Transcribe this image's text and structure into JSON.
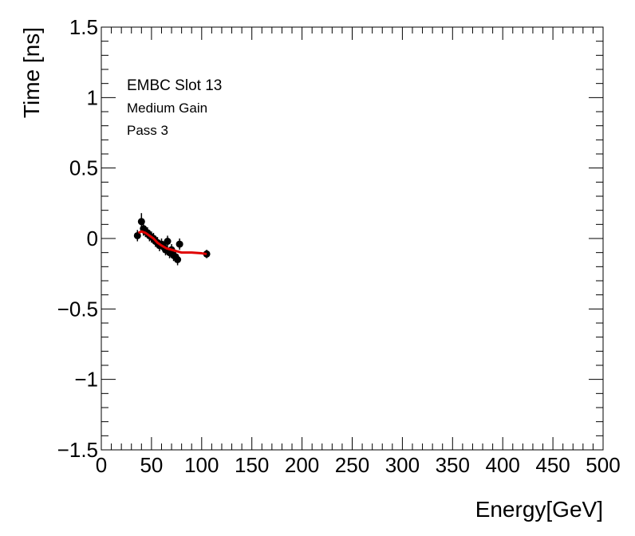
{
  "chart_data": {
    "type": "scatter",
    "xlabel": "Energy[GeV]",
    "ylabel": "Time [ns]",
    "xlim": [
      0,
      500
    ],
    "ylim": [
      -1.5,
      1.5
    ],
    "x_ticks": [
      0,
      50,
      100,
      150,
      200,
      250,
      300,
      350,
      400,
      450,
      500
    ],
    "x_tick_labels": [
      "0",
      "50",
      "100",
      "150",
      "200",
      "250",
      "300",
      "350",
      "400",
      "450",
      "500"
    ],
    "y_ticks": [
      -1.5,
      -1,
      -0.5,
      0,
      0.5,
      1,
      1.5
    ],
    "y_tick_labels": [
      "−1.5",
      "−1",
      "−0.5",
      "0",
      "0.5",
      "1",
      "1.5"
    ],
    "grid": false,
    "annotations": [
      "EMBC Slot 13",
      "Medium Gain",
      "Pass 3"
    ],
    "colors": {
      "points": "#000000",
      "fit": "#e00000"
    },
    "series": [
      {
        "values": [
          {
            "x": 36,
            "y": 0.02,
            "err": 0.04
          },
          {
            "x": 40,
            "y": 0.12,
            "err": 0.06
          },
          {
            "x": 42,
            "y": 0.07,
            "err": 0.05
          },
          {
            "x": 44,
            "y": 0.05,
            "err": 0.04
          },
          {
            "x": 46,
            "y": 0.04,
            "err": 0.04
          },
          {
            "x": 48,
            "y": 0.02,
            "err": 0.04
          },
          {
            "x": 50,
            "y": 0.01,
            "err": 0.04
          },
          {
            "x": 52,
            "y": 0.0,
            "err": 0.04
          },
          {
            "x": 54,
            "y": -0.02,
            "err": 0.04
          },
          {
            "x": 56,
            "y": -0.03,
            "err": 0.04
          },
          {
            "x": 58,
            "y": -0.05,
            "err": 0.04
          },
          {
            "x": 60,
            "y": -0.04,
            "err": 0.04
          },
          {
            "x": 62,
            "y": -0.06,
            "err": 0.04
          },
          {
            "x": 64,
            "y": -0.08,
            "err": 0.04
          },
          {
            "x": 66,
            "y": -0.02,
            "err": 0.04
          },
          {
            "x": 68,
            "y": -0.1,
            "err": 0.04
          },
          {
            "x": 70,
            "y": -0.08,
            "err": 0.04
          },
          {
            "x": 72,
            "y": -0.12,
            "err": 0.04
          },
          {
            "x": 74,
            "y": -0.13,
            "err": 0.04
          },
          {
            "x": 76,
            "y": -0.15,
            "err": 0.04
          },
          {
            "x": 78,
            "y": -0.04,
            "err": 0.04
          },
          {
            "x": 105,
            "y": -0.11,
            "err": 0.03
          }
        ]
      }
    ],
    "fit": {
      "x": [
        37,
        40,
        44,
        48,
        52,
        56,
        60,
        65,
        70,
        75,
        80,
        90,
        100,
        105
      ],
      "y": [
        0.04,
        0.05,
        0.04,
        0.02,
        0.0,
        -0.03,
        -0.05,
        -0.07,
        -0.08,
        -0.09,
        -0.1,
        -0.1,
        -0.105,
        -0.11
      ]
    }
  }
}
